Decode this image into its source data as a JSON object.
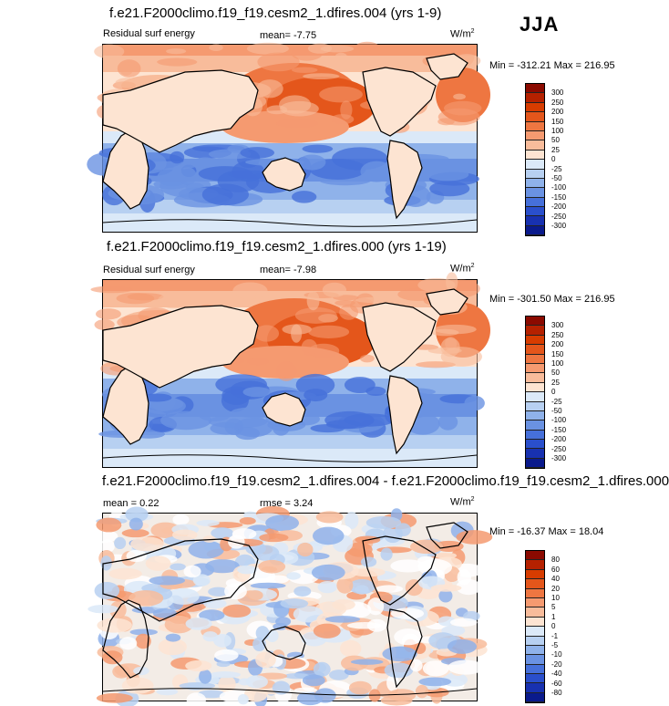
{
  "season": "JJA",
  "chart_data": [
    {
      "type": "heatmap",
      "title": "f.e21.F2000climo.f19_f19.cesm2_1.dfires.004 (yrs 1-9)",
      "left_label": "Residual surf energy",
      "mean_label": "mean=",
      "mean_value": "-7.75",
      "units": "W/m",
      "units_sup": "2",
      "minmax": "Min = -312.21 Max = 216.95",
      "colorbar_levels": [
        "300",
        "250",
        "200",
        "150",
        "100",
        "50",
        "25",
        "0",
        "-25",
        "-50",
        "-100",
        "-150",
        "-200",
        "-250",
        "-300"
      ],
      "colorbar_colors": [
        "#8b0a00",
        "#b52100",
        "#d73c00",
        "#e4561b",
        "#ee7641",
        "#f59a70",
        "#f8bc9b",
        "#fde4d2",
        "#dbe9f8",
        "#b7d0f1",
        "#8fb2ea",
        "#6a92e2",
        "#4670da",
        "#2a4fcc",
        "#1831b0",
        "#0a1a8c"
      ]
    },
    {
      "type": "heatmap",
      "title": "f.e21.F2000climo.f19_f19.cesm2_1.dfires.000 (yrs 1-19)",
      "left_label": "Residual surf energy",
      "mean_label": "mean=",
      "mean_value": "-7.98",
      "units": "W/m",
      "units_sup": "2",
      "minmax": "Min = -301.50 Max = 216.95",
      "colorbar_levels": [
        "300",
        "250",
        "200",
        "150",
        "100",
        "50",
        "25",
        "0",
        "-25",
        "-50",
        "-100",
        "-150",
        "-200",
        "-250",
        "-300"
      ],
      "colorbar_colors": [
        "#8b0a00",
        "#b52100",
        "#d73c00",
        "#e4561b",
        "#ee7641",
        "#f59a70",
        "#f8bc9b",
        "#fde4d2",
        "#dbe9f8",
        "#b7d0f1",
        "#8fb2ea",
        "#6a92e2",
        "#4670da",
        "#2a4fcc",
        "#1831b0",
        "#0a1a8c"
      ]
    },
    {
      "type": "heatmap",
      "title": "f.e21.F2000climo.f19_f19.cesm2_1.dfires.004 - f.e21.F2000climo.f19_f19.cesm2_1.dfires.000",
      "left_label": "mean =",
      "mean_value": "0.22",
      "mean_label": "rmse =",
      "rmse_value": "3.24",
      "units": "W/m",
      "units_sup": "2",
      "minmax": "Min = -16.37 Max = 18.04",
      "colorbar_levels": [
        "80",
        "60",
        "40",
        "20",
        "10",
        "5",
        "1",
        "0",
        "-1",
        "-5",
        "-10",
        "-20",
        "-40",
        "-60",
        "-80"
      ],
      "colorbar_colors": [
        "#8b0a00",
        "#b52100",
        "#d73c00",
        "#e4561b",
        "#ee7641",
        "#f59a70",
        "#f8bc9b",
        "#fde4d2",
        "#dbe9f8",
        "#b7d0f1",
        "#8fb2ea",
        "#6a92e2",
        "#4670da",
        "#2a4fcc",
        "#1831b0",
        "#0a1a8c"
      ]
    }
  ]
}
